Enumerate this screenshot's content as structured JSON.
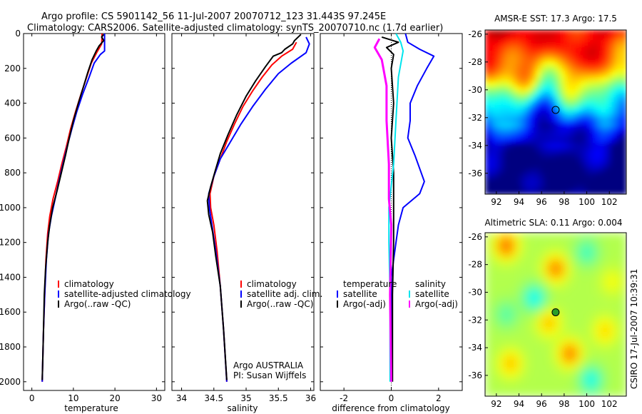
{
  "title_line1": "Argo profile: CS 5901142_56 11-Jul-2007 20070712_123 31.443S 97.245E",
  "title_line2": "Climatology: CARS2006. Satellite-adjusted climatology: synTS_20070710.nc (1.7d earlier)",
  "colors": {
    "climatology": "#ff0000",
    "satellite": "#0000ff",
    "argo": "#000000",
    "sat_diff": "#00e5ee",
    "argo_diff": "#ff00ff"
  },
  "side_text": "CSIRO 17-Jul-2007 10:39:31",
  "chart_data": [
    {
      "type": "line",
      "panel": "temperature",
      "xlabel": "temperature",
      "xlim": [
        -2,
        32
      ],
      "ylim": [
        2050,
        0
      ],
      "xticks": [
        0,
        10,
        20,
        30
      ],
      "yticks": [
        0,
        200,
        400,
        600,
        800,
        1000,
        1200,
        1400,
        1600,
        1800,
        2000
      ],
      "legend": [
        "climatology",
        "satellite-adjusted climatology",
        "Argo(..raw -QC)"
      ],
      "series": [
        {
          "name": "climatology",
          "color": "#ff0000",
          "points": [
            [
              16.9,
              0
            ],
            [
              16.8,
              60
            ],
            [
              15.6,
              110
            ],
            [
              14.3,
              170
            ],
            [
              13.2,
              250
            ],
            [
              11.8,
              350
            ],
            [
              10.5,
              450
            ],
            [
              9.3,
              550
            ],
            [
              8.3,
              650
            ],
            [
              7.2,
              750
            ],
            [
              6.2,
              850
            ],
            [
              5.1,
              950
            ],
            [
              4.3,
              1050
            ],
            [
              3.8,
              1150
            ],
            [
              3.4,
              1300
            ],
            [
              3.1,
              1500
            ],
            [
              2.8,
              1700
            ],
            [
              2.6,
              1900
            ],
            [
              2.5,
              2000
            ]
          ]
        },
        {
          "name": "satellite-adjusted climatology",
          "color": "#0000ff",
          "points": [
            [
              17.5,
              0
            ],
            [
              17.5,
              100
            ],
            [
              16.5,
              120
            ],
            [
              15,
              170
            ],
            [
              13.8,
              250
            ],
            [
              12.2,
              350
            ],
            [
              10.8,
              450
            ],
            [
              9.6,
              550
            ],
            [
              8.5,
              650
            ],
            [
              7.5,
              750
            ],
            [
              6.5,
              850
            ],
            [
              5.6,
              950
            ],
            [
              4.7,
              1050
            ],
            [
              4.0,
              1150
            ],
            [
              3.5,
              1300
            ],
            [
              3.1,
              1500
            ],
            [
              2.8,
              1700
            ],
            [
              2.6,
              1900
            ],
            [
              2.5,
              2000
            ]
          ]
        },
        {
          "name": "Argo(..raw -QC)",
          "color": "#000000",
          "points": [
            [
              17.3,
              5
            ],
            [
              16.8,
              20
            ],
            [
              17.3,
              40
            ],
            [
              16.2,
              70
            ],
            [
              15.5,
              100
            ],
            [
              14.5,
              150
            ],
            [
              13.5,
              220
            ],
            [
              12.5,
              300
            ],
            [
              11.2,
              400
            ],
            [
              10,
              500
            ],
            [
              9,
              600
            ],
            [
              8.1,
              700
            ],
            [
              7.1,
              800
            ],
            [
              6.1,
              900
            ],
            [
              5.0,
              1000
            ],
            [
              4.3,
              1100
            ],
            [
              3.8,
              1200
            ],
            [
              3.3,
              1350
            ],
            [
              3.0,
              1500
            ],
            [
              2.8,
              1700
            ],
            [
              2.6,
              1900
            ],
            [
              2.5,
              1990
            ]
          ]
        }
      ]
    },
    {
      "type": "line",
      "panel": "salinity",
      "xlabel": "salinity",
      "xlim": [
        33.85,
        36.05
      ],
      "ylim": [
        2050,
        0
      ],
      "xticks": [
        34,
        34.5,
        35,
        35.5,
        36
      ],
      "legend": [
        "climatology",
        "satellite adj. clim.",
        "Argo(..raw -QC)"
      ],
      "series": [
        {
          "name": "climatology",
          "color": "#ff0000",
          "points": [
            [
              35.78,
              50
            ],
            [
              35.72,
              90
            ],
            [
              35.55,
              130
            ],
            [
              35.4,
              180
            ],
            [
              35.25,
              250
            ],
            [
              35.1,
              330
            ],
            [
              34.95,
              420
            ],
            [
              34.82,
              520
            ],
            [
              34.7,
              620
            ],
            [
              34.6,
              720
            ],
            [
              34.5,
              820
            ],
            [
              34.44,
              920
            ],
            [
              34.45,
              1000
            ],
            [
              34.5,
              1100
            ],
            [
              34.55,
              1250
            ],
            [
              34.6,
              1450
            ],
            [
              34.65,
              1700
            ],
            [
              34.7,
              2000
            ]
          ]
        },
        {
          "name": "satellite adj. clim.",
          "color": "#0000ff",
          "points": [
            [
              35.93,
              20
            ],
            [
              35.98,
              60
            ],
            [
              35.93,
              110
            ],
            [
              35.7,
              170
            ],
            [
              35.5,
              230
            ],
            [
              35.3,
              320
            ],
            [
              35.1,
              420
            ],
            [
              34.92,
              520
            ],
            [
              34.76,
              620
            ],
            [
              34.6,
              720
            ],
            [
              34.5,
              820
            ],
            [
              34.42,
              920
            ],
            [
              34.43,
              1000
            ],
            [
              34.47,
              1100
            ],
            [
              34.53,
              1250
            ],
            [
              34.6,
              1450
            ],
            [
              34.65,
              1700
            ],
            [
              34.7,
              2000
            ]
          ]
        },
        {
          "name": "Argo(..raw -QC)",
          "color": "#000000",
          "points": [
            [
              35.85,
              5
            ],
            [
              35.75,
              40
            ],
            [
              35.72,
              60
            ],
            [
              35.6,
              90
            ],
            [
              35.55,
              110
            ],
            [
              35.42,
              130
            ],
            [
              35.3,
              190
            ],
            [
              35.15,
              270
            ],
            [
              35.0,
              360
            ],
            [
              34.85,
              470
            ],
            [
              34.72,
              580
            ],
            [
              34.6,
              690
            ],
            [
              34.52,
              790
            ],
            [
              34.45,
              880
            ],
            [
              34.4,
              960
            ],
            [
              34.42,
              1040
            ],
            [
              34.48,
              1140
            ],
            [
              34.53,
              1280
            ],
            [
              34.6,
              1450
            ],
            [
              34.65,
              1700
            ],
            [
              34.7,
              1990
            ]
          ]
        }
      ]
    },
    {
      "type": "line",
      "panel": "difference",
      "xlabel": "difference from climatology",
      "xlim": [
        -3,
        3
      ],
      "ylim": [
        2050,
        0
      ],
      "xticks": [
        -2,
        0,
        2
      ],
      "legend_left_header": "temperature",
      "legend_right_header": "salinity",
      "legend": [
        "satellite",
        "Argo(-adj)",
        "satellite",
        "Argo(-adj)"
      ],
      "series": [
        {
          "name": "temperature satellite",
          "color": "#0000ff",
          "points": [
            [
              0.6,
              0
            ],
            [
              0.7,
              50
            ],
            [
              1.2,
              90
            ],
            [
              1.8,
              130
            ],
            [
              1.5,
              200
            ],
            [
              1.1,
              300
            ],
            [
              0.8,
              400
            ],
            [
              0.8,
              500
            ],
            [
              0.7,
              600
            ],
            [
              1.0,
              700
            ],
            [
              1.4,
              850
            ],
            [
              1.2,
              920
            ],
            [
              0.5,
              1000
            ],
            [
              0.3,
              1100
            ],
            [
              0.2,
              1200
            ],
            [
              0,
              1400
            ],
            [
              0,
              1800
            ],
            [
              0,
              2000
            ]
          ]
        },
        {
          "name": "temperature Argo(-adj)",
          "color": "#000000",
          "points": [
            [
              -0.4,
              20
            ],
            [
              0.3,
              50
            ],
            [
              -0.2,
              80
            ],
            [
              0.1,
              120
            ],
            [
              0,
              200
            ],
            [
              0.1,
              400
            ],
            [
              0,
              600
            ],
            [
              0.1,
              800
            ],
            [
              0.1,
              1000
            ],
            [
              0.1,
              1200
            ],
            [
              0.05,
              1500
            ],
            [
              0.05,
              2000
            ]
          ]
        },
        {
          "name": "salinity satellite",
          "color": "#00e5ee",
          "points": [
            [
              0.2,
              0
            ],
            [
              0.4,
              50
            ],
            [
              0.5,
              100
            ],
            [
              0.3,
              250
            ],
            [
              0.2,
              500
            ],
            [
              0.1,
              750
            ],
            [
              -0.1,
              1000
            ],
            [
              -0.1,
              1200
            ],
            [
              -0.05,
              1500
            ],
            [
              -0.05,
              2000
            ]
          ]
        },
        {
          "name": "salinity Argo(-adj)",
          "color": "#ff00ff",
          "points": [
            [
              -0.5,
              30
            ],
            [
              -0.7,
              80
            ],
            [
              -0.4,
              150
            ],
            [
              -0.2,
              300
            ],
            [
              -0.2,
              500
            ],
            [
              -0.1,
              750
            ],
            [
              -0.1,
              950
            ],
            [
              0,
              1100
            ],
            [
              -0.05,
              1500
            ],
            [
              0,
              2000
            ]
          ]
        }
      ]
    },
    {
      "type": "heatmap",
      "panel": "sst",
      "title": "AMSR-E SST: 17.3 Argo: 17.5",
      "xlim": [
        91,
        103.5
      ],
      "ylim": [
        -37.5,
        -25.7
      ],
      "xticks": [
        92,
        94,
        96,
        98,
        100,
        102
      ],
      "yticks": [
        -26,
        -28,
        -30,
        -32,
        -34,
        -36
      ],
      "marker": [
        97.245,
        -31.443
      ]
    },
    {
      "type": "heatmap",
      "panel": "sla",
      "title": "Altimetric SLA: 0.11 Argo: 0.004",
      "xlim": [
        91,
        103.5
      ],
      "ylim": [
        -37.5,
        -25.7
      ],
      "xticks": [
        92,
        94,
        96,
        98,
        100,
        102
      ],
      "yticks": [
        -26,
        -28,
        -30,
        -32,
        -34,
        -36
      ],
      "marker": [
        97.245,
        -31.443
      ]
    }
  ]
}
